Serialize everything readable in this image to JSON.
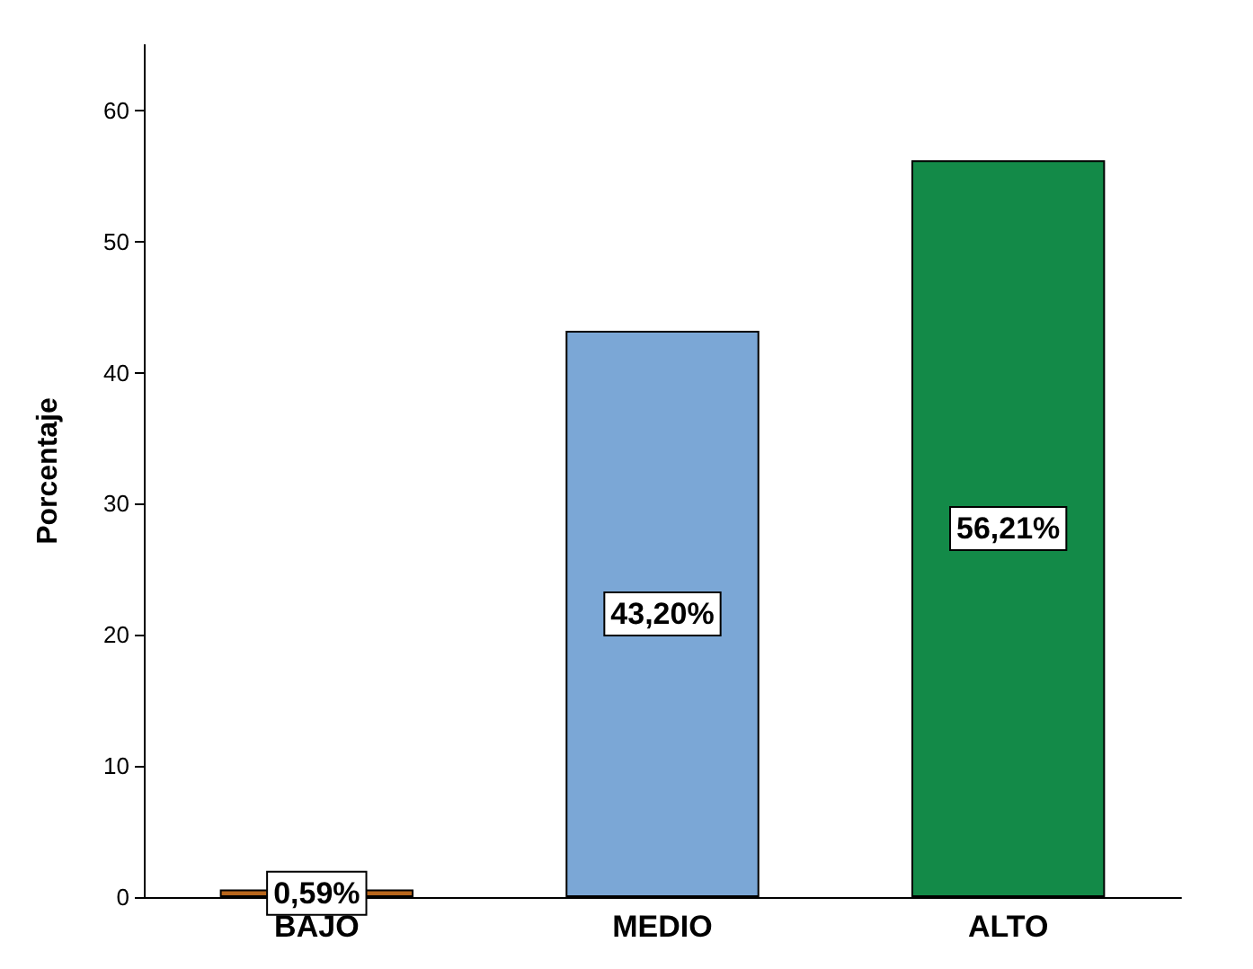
{
  "chart_data": {
    "type": "bar",
    "ylabel": "Porcentaje",
    "categories": [
      "BAJO",
      "MEDIO",
      "ALTO"
    ],
    "values": [
      0.59,
      43.2,
      56.21
    ],
    "colors": [
      "#b8661c",
      "#7ba7d6",
      "#138a48"
    ],
    "value_labels": [
      "0,59%",
      "43,20%",
      "56,21%"
    ],
    "ylim": [
      0,
      65
    ],
    "yticks": [
      0,
      10,
      20,
      30,
      40,
      50,
      60
    ],
    "grid": false
  }
}
